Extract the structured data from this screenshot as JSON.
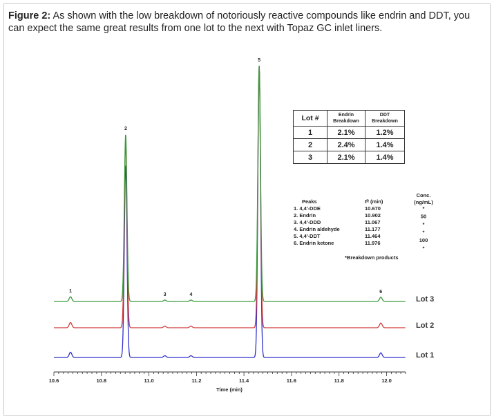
{
  "caption": {
    "label": "Figure 2:",
    "text": " As shown with the low breakdown of notoriously reactive compounds like endrin and DDT, you can expect the same great results from one lot to the next with Topaz GC inlet liners."
  },
  "table": {
    "headers": [
      "Lot #",
      "Endrin Breakdown",
      "DDT Breakdown"
    ],
    "rows": [
      [
        "1",
        "2.1%",
        "1.2%"
      ],
      [
        "2",
        "2.4%",
        "1.4%"
      ],
      [
        "3",
        "2.1%",
        "1.4%"
      ]
    ]
  },
  "legend": {
    "peaks_header": "Peaks",
    "tr_header": "tᴿ (min)",
    "conc_header": "Conc. (ng/mL)",
    "items": [
      {
        "name": "1. 4,4'-DDE",
        "tr": "10.670",
        "conc": "*"
      },
      {
        "name": "2. Endrin",
        "tr": "10.902",
        "conc": "50"
      },
      {
        "name": "3. 4,4'-DDD",
        "tr": "11.067",
        "conc": "*"
      },
      {
        "name": "4. Endrin aldehyde",
        "tr": "11.177",
        "conc": "*"
      },
      {
        "name": "5. 4,4'-DDT",
        "tr": "11.464",
        "conc": "100"
      },
      {
        "name": "6. Endrin ketone",
        "tr": "11.976",
        "conc": "*"
      }
    ],
    "note": "*Breakdown products"
  },
  "chart_data": {
    "type": "line",
    "xlabel": "Time (min)",
    "xlim": [
      10.6,
      12.08
    ],
    "x_ticks": [
      "10.6",
      "10.8",
      "11.0",
      "11.2",
      "11.4",
      "11.6",
      "11.8",
      "12.0"
    ],
    "peak_labels": [
      {
        "label": "1",
        "x": 10.67
      },
      {
        "label": "2",
        "x": 10.902
      },
      {
        "label": "3",
        "x": 11.067
      },
      {
        "label": "4",
        "x": 11.177
      },
      {
        "label": "5",
        "x": 11.464
      },
      {
        "label": "6",
        "x": 11.976
      }
    ],
    "series": [
      {
        "name": "Lot 3",
        "color": "#3a9a3a",
        "peaks": [
          [
            10.67,
            0.02
          ],
          [
            10.902,
            0.71
          ],
          [
            11.067,
            0.006
          ],
          [
            11.177,
            0.006
          ],
          [
            11.464,
            1.0
          ],
          [
            11.976,
            0.018
          ]
        ]
      },
      {
        "name": "Lot 2",
        "color": "#d23a3a",
        "peaks": [
          [
            10.67,
            0.02
          ],
          [
            10.902,
            0.71
          ],
          [
            11.067,
            0.006
          ],
          [
            11.177,
            0.006
          ],
          [
            11.464,
            1.0
          ],
          [
            11.976,
            0.018
          ]
        ]
      },
      {
        "name": "Lot 1",
        "color": "#2f2fcc",
        "peaks": [
          [
            10.67,
            0.018
          ],
          [
            10.902,
            0.66
          ],
          [
            11.067,
            0.006
          ],
          [
            11.177,
            0.006
          ],
          [
            11.464,
            1.0
          ],
          [
            11.976,
            0.016
          ]
        ]
      }
    ]
  }
}
